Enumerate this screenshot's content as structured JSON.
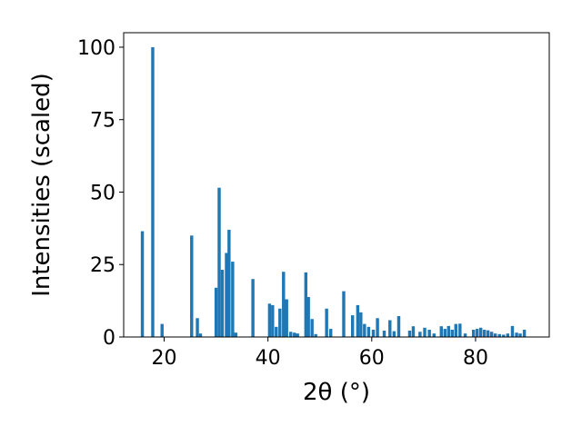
{
  "chart_data": {
    "type": "bar",
    "xlabel": "2θ (°)",
    "ylabel": "Intensities (scaled)",
    "xlim": [
      12.2,
      94.2
    ],
    "ylim": [
      0,
      105
    ],
    "x_ticks": [
      20,
      40,
      60,
      80
    ],
    "y_ticks": [
      0,
      25,
      50,
      75,
      100
    ],
    "grid": false,
    "bar_width": 0.6,
    "bar_color": "#1f77b4",
    "series": [
      {
        "x": [
          15.8,
          17.8,
          19.6,
          25.3,
          26.4,
          27.0,
          30.0,
          30.6,
          31.2,
          32.0,
          32.5,
          33.2,
          33.8,
          37.1,
          40.3,
          40.9,
          41.6,
          42.3,
          43.0,
          43.6,
          44.4,
          45.1,
          45.7,
          47.3,
          47.8,
          48.5,
          49.2,
          51.3,
          52.1,
          54.6,
          56.3,
          57.3,
          57.9,
          58.6,
          59.4,
          60.3,
          61.1,
          62.4,
          63.5,
          64.3,
          65.2,
          67.3,
          68.0,
          69.3,
          70.2,
          71.1,
          72.0,
          73.4,
          74.1,
          74.8,
          75.5,
          76.2,
          77.0,
          78.0,
          79.6,
          80.3,
          81.0,
          81.7,
          82.4,
          83.1,
          83.8,
          84.6,
          85.4,
          86.2,
          87.1,
          87.9,
          88.6,
          89.4
        ],
        "values": [
          36.5,
          100,
          4.5,
          35,
          6.5,
          1.2,
          17,
          51.5,
          23.2,
          29,
          37,
          26,
          1.5,
          20,
          11.5,
          11,
          3.5,
          9.8,
          22.5,
          13,
          1.8,
          1.5,
          1.2,
          22.3,
          13.8,
          6.2,
          1.0,
          9.8,
          2.8,
          15.8,
          7.5,
          11,
          8.5,
          4.5,
          3.5,
          2.5,
          6.5,
          2.2,
          5.8,
          2.0,
          7.2,
          2.2,
          3.7,
          1.8,
          3.2,
          2.5,
          1.2,
          3.7,
          2.8,
          3.8,
          2.5,
          4.5,
          4.6,
          1.2,
          2.5,
          2.8,
          3.2,
          2.5,
          2.3,
          1.8,
          1.2,
          1.0,
          0.8,
          1.2,
          3.8,
          1.5,
          1.2,
          2.5
        ]
      }
    ]
  }
}
